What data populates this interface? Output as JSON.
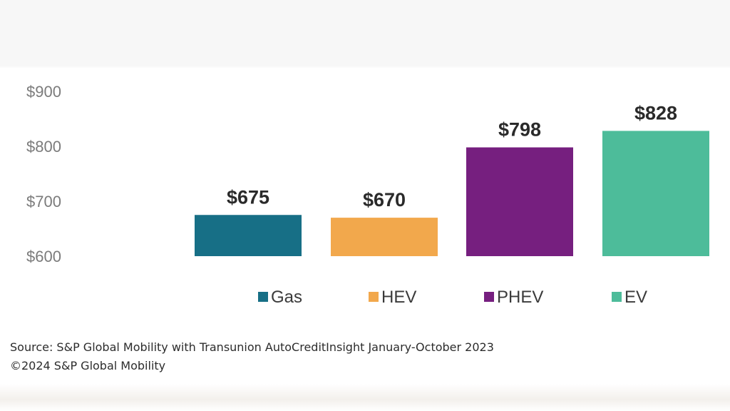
{
  "chart_data": {
    "type": "bar",
    "categories": [
      "Gas",
      "HEV",
      "PHEV",
      "EV"
    ],
    "values": [
      675,
      670,
      798,
      828
    ],
    "data_labels": [
      "$675",
      "$670",
      "$798",
      "$828"
    ],
    "colors": [
      "#176f86",
      "#f2a84c",
      "#761f7f",
      "#4dbc9a"
    ],
    "ylim": [
      600,
      900
    ],
    "yticks": [
      600,
      700,
      800,
      900
    ],
    "ytick_labels": [
      "$600",
      "$700",
      "$800",
      "$900"
    ],
    "grid": false,
    "legend_position": "bottom",
    "legend": [
      "Gas",
      "HEV",
      "PHEV",
      "EV"
    ]
  },
  "footer": {
    "source": "Source: S&P Global Mobility with Transunion AutoCreditInsight January-October 2023",
    "copyright": "©2024 S&P Global Mobility"
  }
}
